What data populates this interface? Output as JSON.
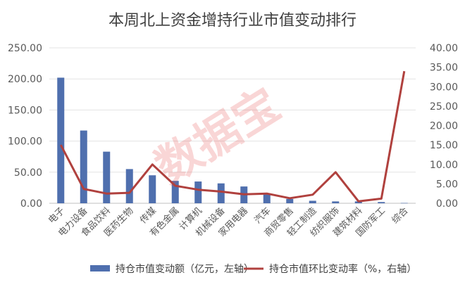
{
  "chart_data": {
    "type": "bar",
    "title": "本周北上资金增持行业市值变动排行",
    "categories": [
      "电子",
      "电力设备",
      "食品饮料",
      "医药生物",
      "传媒",
      "有色金属",
      "计算机",
      "机械设备",
      "家用电器",
      "汽车",
      "商贸零售",
      "轻工制造",
      "纺织服饰",
      "建筑材料",
      "国防军工",
      "综合"
    ],
    "left_axis": {
      "ylim": [
        0,
        250
      ],
      "ticks": [
        "0.00",
        "50.00",
        "100.00",
        "150.00",
        "200.00",
        "250.00"
      ]
    },
    "right_axis": {
      "ylim": [
        0,
        40
      ],
      "ticks": [
        "0.00",
        "5.00",
        "10.00",
        "15.00",
        "20.00",
        "25.00",
        "30.00",
        "35.00",
        "40.00"
      ]
    },
    "series": [
      {
        "name": "持仓市值变动额（亿元，左轴）",
        "type": "bar",
        "axis": "left",
        "color": "#4f6fae",
        "values": [
          202,
          117,
          83,
          55,
          45,
          36,
          35,
          32,
          27,
          15,
          7,
          4,
          3,
          3,
          2,
          0.5
        ]
      },
      {
        "name": "持仓市值环比变动率（%，右轴）",
        "type": "line",
        "axis": "right",
        "color": "#b0413e",
        "values": [
          15.0,
          3.7,
          2.5,
          2.7,
          10.0,
          4.5,
          3.5,
          3.0,
          2.3,
          2.5,
          1.3,
          2.2,
          8.0,
          0.5,
          1.2,
          34.0
        ]
      }
    ],
    "grid": "horizontal",
    "legend_position": "bottom"
  },
  "watermark": {
    "text": "数据宝",
    "color": "#e84a4a"
  }
}
